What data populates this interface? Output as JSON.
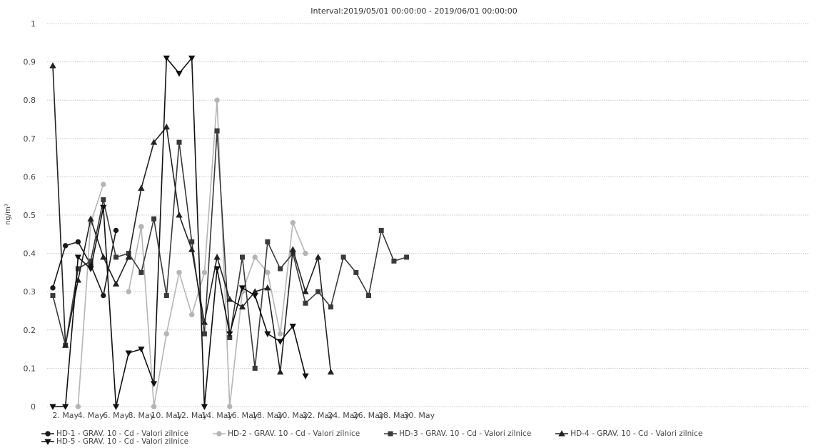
{
  "chart_data": {
    "type": "line",
    "title": "Interval:2019/05/01 00:00:00 - 2019/06/01 00:00:00",
    "ylabel": "ng/m³",
    "xlabel": "",
    "ylim": [
      0,
      1
    ],
    "yticks": [
      "0",
      "0.1",
      "0.2",
      "0.3",
      "0.4",
      "0.5",
      "0.6",
      "0.7",
      "0.8",
      "0.9",
      "1"
    ],
    "xticks": [
      "2. May",
      "4. May",
      "6. May",
      "8. May",
      "10. May",
      "12. May",
      "14. May",
      "16. May",
      "18. May",
      "20. May",
      "22. May",
      "24. May",
      "26. May",
      "28. May",
      "30. May"
    ],
    "x": [
      "2019-05-01",
      "2019-05-02",
      "2019-05-03",
      "2019-05-04",
      "2019-05-05",
      "2019-05-06",
      "2019-05-07",
      "2019-05-08",
      "2019-05-09",
      "2019-05-10",
      "2019-05-11",
      "2019-05-12",
      "2019-05-13",
      "2019-05-14",
      "2019-05-15",
      "2019-05-16",
      "2019-05-17",
      "2019-05-18",
      "2019-05-19",
      "2019-05-20",
      "2019-05-21",
      "2019-05-22",
      "2019-05-23",
      "2019-05-24",
      "2019-05-25",
      "2019-05-26",
      "2019-05-27",
      "2019-05-28",
      "2019-05-29",
      "2019-05-30"
    ],
    "grid": true,
    "legend_position": "bottom",
    "series": [
      {
        "name": "HD-1 - GRAV. 10 - Cd - Valori zilnice",
        "color": "#1a1a1a",
        "marker": "circle",
        "values": [
          0.31,
          0.42,
          0.43,
          0.37,
          0.29,
          0.46,
          null,
          null,
          null,
          null,
          null,
          null,
          null,
          null,
          null,
          null,
          null,
          null,
          null,
          null,
          null,
          null,
          null,
          null,
          null,
          null,
          null,
          null,
          null,
          null
        ]
      },
      {
        "name": "HD-2 - GRAV. 10 - Cd - Valori zilnice",
        "color": "#b5b5b5",
        "marker": "circle",
        "values": [
          null,
          null,
          0.0,
          0.48,
          0.58,
          null,
          0.3,
          0.47,
          0.0,
          0.19,
          0.35,
          0.24,
          0.35,
          0.8,
          0.0,
          0.3,
          0.39,
          0.35,
          0.19,
          0.48,
          0.4,
          null,
          null,
          null,
          null,
          null,
          null,
          null,
          null,
          null
        ]
      },
      {
        "name": "HD-3 - GRAV. 10 - Cd - Valori zilnice",
        "color": "#3a3a3a",
        "marker": "square",
        "values": [
          0.29,
          0.16,
          0.36,
          0.38,
          0.54,
          0.39,
          0.4,
          0.35,
          0.49,
          0.29,
          0.69,
          0.43,
          0.19,
          0.72,
          0.18,
          0.39,
          0.1,
          0.43,
          0.36,
          0.4,
          0.27,
          0.3,
          0.26,
          0.39,
          0.35,
          0.29,
          0.46,
          0.38,
          0.39,
          null
        ]
      },
      {
        "name": "HD-4 - GRAV. 10 - Cd - Valori zilnice",
        "color": "#222222",
        "marker": "triangle",
        "values": [
          0.89,
          0.16,
          0.33,
          0.49,
          0.39,
          0.32,
          0.39,
          0.57,
          0.69,
          0.73,
          0.5,
          0.41,
          0.22,
          0.39,
          0.28,
          0.26,
          0.3,
          0.31,
          0.09,
          0.41,
          0.3,
          0.39,
          0.09,
          null,
          null,
          null,
          null,
          null,
          null,
          null
        ]
      },
      {
        "name": "HD-5 - GRAV. 10 - Cd - Valori zilnice",
        "color": "#111111",
        "marker": "triangle-down",
        "values": [
          0.0,
          0.0,
          0.39,
          0.36,
          0.52,
          0.0,
          0.14,
          0.15,
          0.06,
          0.91,
          0.87,
          0.91,
          0.0,
          0.36,
          0.19,
          0.31,
          0.29,
          0.19,
          0.17,
          0.21,
          0.08,
          null,
          null,
          null,
          null,
          null,
          null,
          null,
          null,
          null
        ]
      }
    ]
  }
}
